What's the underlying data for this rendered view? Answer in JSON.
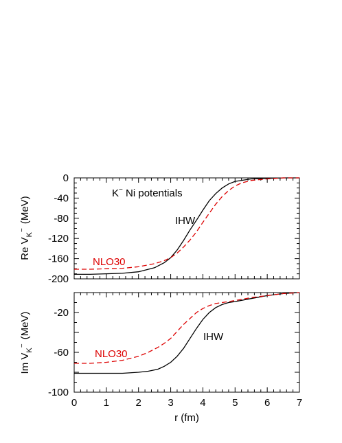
{
  "chart_data": [
    {
      "type": "line",
      "panel": "top",
      "ylabel_main": "Re V",
      "ylabel_sub": "K",
      "ylabel_sup": "−",
      "ylabel_unit": "(MeV)",
      "xlabel": "",
      "xlim": [
        0,
        7
      ],
      "ylim": [
        -200,
        0
      ],
      "xticks": [
        "0",
        "1",
        "2",
        "3",
        "4",
        "5",
        "6",
        "7"
      ],
      "yticks": [
        "0",
        "-40",
        "-80",
        "-120",
        "-160",
        "-200"
      ],
      "ytick_values": [
        0,
        -40,
        -80,
        -120,
        -160,
        -200
      ],
      "annotation_parts": {
        "k": "K",
        "sup": "−",
        "rest": " Ni potentials"
      },
      "series": [
        {
          "name": "IHW",
          "color": "#000000",
          "style": "solid",
          "x": [
            0,
            0.5,
            1,
            1.5,
            2,
            2.5,
            2.8,
            3.0,
            3.2,
            3.4,
            3.6,
            3.8,
            4.0,
            4.2,
            4.4,
            4.6,
            4.8,
            5.0,
            5.5,
            6.0,
            6.5,
            7.0
          ],
          "y": [
            -191,
            -191,
            -190,
            -189,
            -186,
            -178,
            -168,
            -158,
            -143,
            -124,
            -103,
            -84,
            -64,
            -45,
            -31,
            -20,
            -12,
            -7,
            -2,
            -1,
            0,
            0
          ]
        },
        {
          "name": "NLO30",
          "color": "#dd0000",
          "style": "dashed",
          "x": [
            0,
            0.5,
            1,
            1.5,
            2,
            2.5,
            2.8,
            3.0,
            3.2,
            3.4,
            3.6,
            3.8,
            4.0,
            4.2,
            4.4,
            4.6,
            4.8,
            5.0,
            5.2,
            5.5,
            6.0,
            6.5,
            7.0
          ],
          "y": [
            -181,
            -181,
            -180,
            -179,
            -176,
            -170,
            -164,
            -158,
            -149,
            -137,
            -123,
            -107,
            -88,
            -70,
            -52,
            -37,
            -25,
            -16,
            -10,
            -5,
            -2,
            0,
            0
          ]
        }
      ]
    },
    {
      "type": "line",
      "panel": "bottom",
      "ylabel_main": "Im V",
      "ylabel_sub": "K",
      "ylabel_sup": "−",
      "ylabel_unit": "(MeV)",
      "xlabel": "r (fm)",
      "xlim": [
        0,
        7
      ],
      "ylim": [
        -100,
        0
      ],
      "xticks": [
        "0",
        "1",
        "2",
        "3",
        "4",
        "5",
        "6",
        "7"
      ],
      "yticks": [
        "-20",
        "-60",
        "-100"
      ],
      "ytick_values": [
        -20,
        -60,
        -100
      ],
      "series": [
        {
          "name": "IHW",
          "color": "#000000",
          "style": "solid",
          "x": [
            0,
            0.5,
            1,
            1.5,
            2,
            2.3,
            2.6,
            2.8,
            3.0,
            3.2,
            3.4,
            3.6,
            3.8,
            4.0,
            4.2,
            4.4,
            4.6,
            4.8,
            5.0,
            5.5,
            6.0,
            6.5,
            7.0
          ],
          "y": [
            -81,
            -81,
            -81,
            -81,
            -80,
            -79,
            -77,
            -74,
            -70,
            -64,
            -56,
            -46,
            -36,
            -27,
            -20,
            -15,
            -12,
            -10,
            -9,
            -6,
            -3,
            -1,
            0
          ]
        },
        {
          "name": "NLO30",
          "color": "#dd0000",
          "style": "dashed",
          "x": [
            0,
            0.5,
            1,
            1.5,
            2,
            2.3,
            2.6,
            2.8,
            3.0,
            3.2,
            3.4,
            3.6,
            3.8,
            4.0,
            4.2,
            4.4,
            4.6,
            4.8,
            5.0,
            5.5,
            6.0,
            6.5,
            7.0
          ],
          "y": [
            -71,
            -71,
            -70,
            -68,
            -64,
            -60,
            -55,
            -51,
            -46,
            -39,
            -32,
            -26,
            -20,
            -16,
            -13,
            -11,
            -10,
            -9,
            -8,
            -5,
            -3,
            -1,
            0
          ]
        }
      ]
    }
  ]
}
